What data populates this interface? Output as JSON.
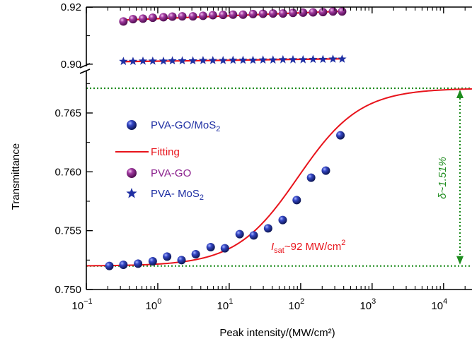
{
  "chart_data": {
    "type": "scatter",
    "xlabel": "Peak intensity/(MW/cm²)",
    "ylabel": "Transmittance",
    "x_scale": "log",
    "xlim": [
      0.1,
      25000
    ],
    "x_ticks": [
      {
        "value": 0.1,
        "base": "10",
        "exp": "−1"
      },
      {
        "value": 1,
        "base": "10",
        "exp": "0"
      },
      {
        "value": 10,
        "base": "10",
        "exp": "1"
      },
      {
        "value": 100,
        "base": "10",
        "exp": "2"
      },
      {
        "value": 1000,
        "base": "10",
        "exp": "3"
      },
      {
        "value": 10000,
        "base": "10",
        "exp": "4"
      }
    ],
    "y_axis_broken": true,
    "y_lower": {
      "ylim": [
        0.75,
        0.768
      ],
      "ticks": [
        "0.750",
        "0.755",
        "0.760",
        "0.765"
      ]
    },
    "y_upper": {
      "ylim": [
        0.8965,
        0.9275
      ],
      "ticks": [
        "0.90",
        "0.92"
      ]
    },
    "legend": {
      "placement": "center-left",
      "items": [
        {
          "id": "gomos2",
          "text": "PVA-GO/MoS",
          "sub": "2",
          "color": "#1f2fa3",
          "marker": "ball-blue"
        },
        {
          "id": "fit",
          "text": "Fitting",
          "sub": "",
          "color": "#e8141c",
          "marker": "line"
        },
        {
          "id": "go",
          "text": "PVA-GO",
          "sub": "",
          "color": "#8a1e8c",
          "marker": "ball-purple"
        },
        {
          "id": "mos2",
          "text": "PVA- MoS",
          "sub": "2",
          "color": "#1f2fa3",
          "marker": "star"
        }
      ]
    },
    "series": [
      {
        "name": "PVA-GO/MoS2",
        "marker": "ball-blue",
        "x": [
          0.21,
          0.33,
          0.53,
          0.85,
          1.35,
          2.15,
          3.4,
          5.5,
          8.7,
          14,
          22,
          35,
          56,
          88,
          140,
          225,
          360
        ],
        "y": [
          0.752,
          0.7521,
          0.7522,
          0.7524,
          0.7528,
          0.7525,
          0.753,
          0.7536,
          0.7535,
          0.7547,
          0.7546,
          0.7552,
          0.7559,
          0.7576,
          0.7595,
          0.7601,
          0.7631
        ]
      },
      {
        "name": "Fitting",
        "marker": "line",
        "model": {
          "T0": 0.752,
          "delta": 0.0151,
          "Isat": 92
        },
        "x_range": [
          0.1,
          25000
        ]
      },
      {
        "name": "PVA-GO",
        "marker": "ball-purple",
        "x": [
          0.33,
          0.45,
          0.62,
          0.85,
          1.2,
          1.6,
          2.2,
          3.1,
          4.3,
          5.9,
          8.2,
          11.3,
          15.6,
          21.5,
          29.7,
          41,
          56.5,
          78,
          108,
          149,
          205,
          283,
          380
        ],
        "y": [
          0.915,
          0.9158,
          0.916,
          0.9163,
          0.9165,
          0.9167,
          0.9168,
          0.9168,
          0.917,
          0.9172,
          0.9173,
          0.9174,
          0.9174,
          0.9176,
          0.9177,
          0.9178,
          0.9178,
          0.918,
          0.9181,
          0.9182,
          0.9183,
          0.9185,
          0.9185
        ]
      },
      {
        "name": "PVA-MoS2",
        "marker": "star",
        "x": [
          0.33,
          0.45,
          0.62,
          0.85,
          1.2,
          1.6,
          2.2,
          3.1,
          4.3,
          5.9,
          8.2,
          11.3,
          15.6,
          21.5,
          29.7,
          41,
          56.5,
          78,
          108,
          149,
          205,
          283,
          380
        ],
        "y": [
          0.901,
          0.901,
          0.9011,
          0.9011,
          0.9011,
          0.9012,
          0.9012,
          0.9012,
          0.9013,
          0.9013,
          0.9013,
          0.9014,
          0.9014,
          0.9014,
          0.9015,
          0.9015,
          0.9016,
          0.9016,
          0.9016,
          0.9017,
          0.9017,
          0.9018,
          0.9018
        ]
      }
    ],
    "linear_fits": [
      {
        "for": "PVA-GO",
        "y_start": 0.9155,
        "y_end": 0.9186,
        "color": "#e8141c"
      },
      {
        "for": "PVA-MoS2",
        "y_start": 0.9009,
        "y_end": 0.9019,
        "color": "#e8141c"
      }
    ],
    "annotations": {
      "isat": {
        "I": "I",
        "sub": "sat",
        "rest": "~92 MW/cm",
        "sup": "2",
        "color": "#e8141c"
      },
      "delta": {
        "text": "δ~1.51%",
        "color": "#1e8c1e"
      },
      "ref_line_color": "#1e8c1e"
    },
    "grid": false
  }
}
